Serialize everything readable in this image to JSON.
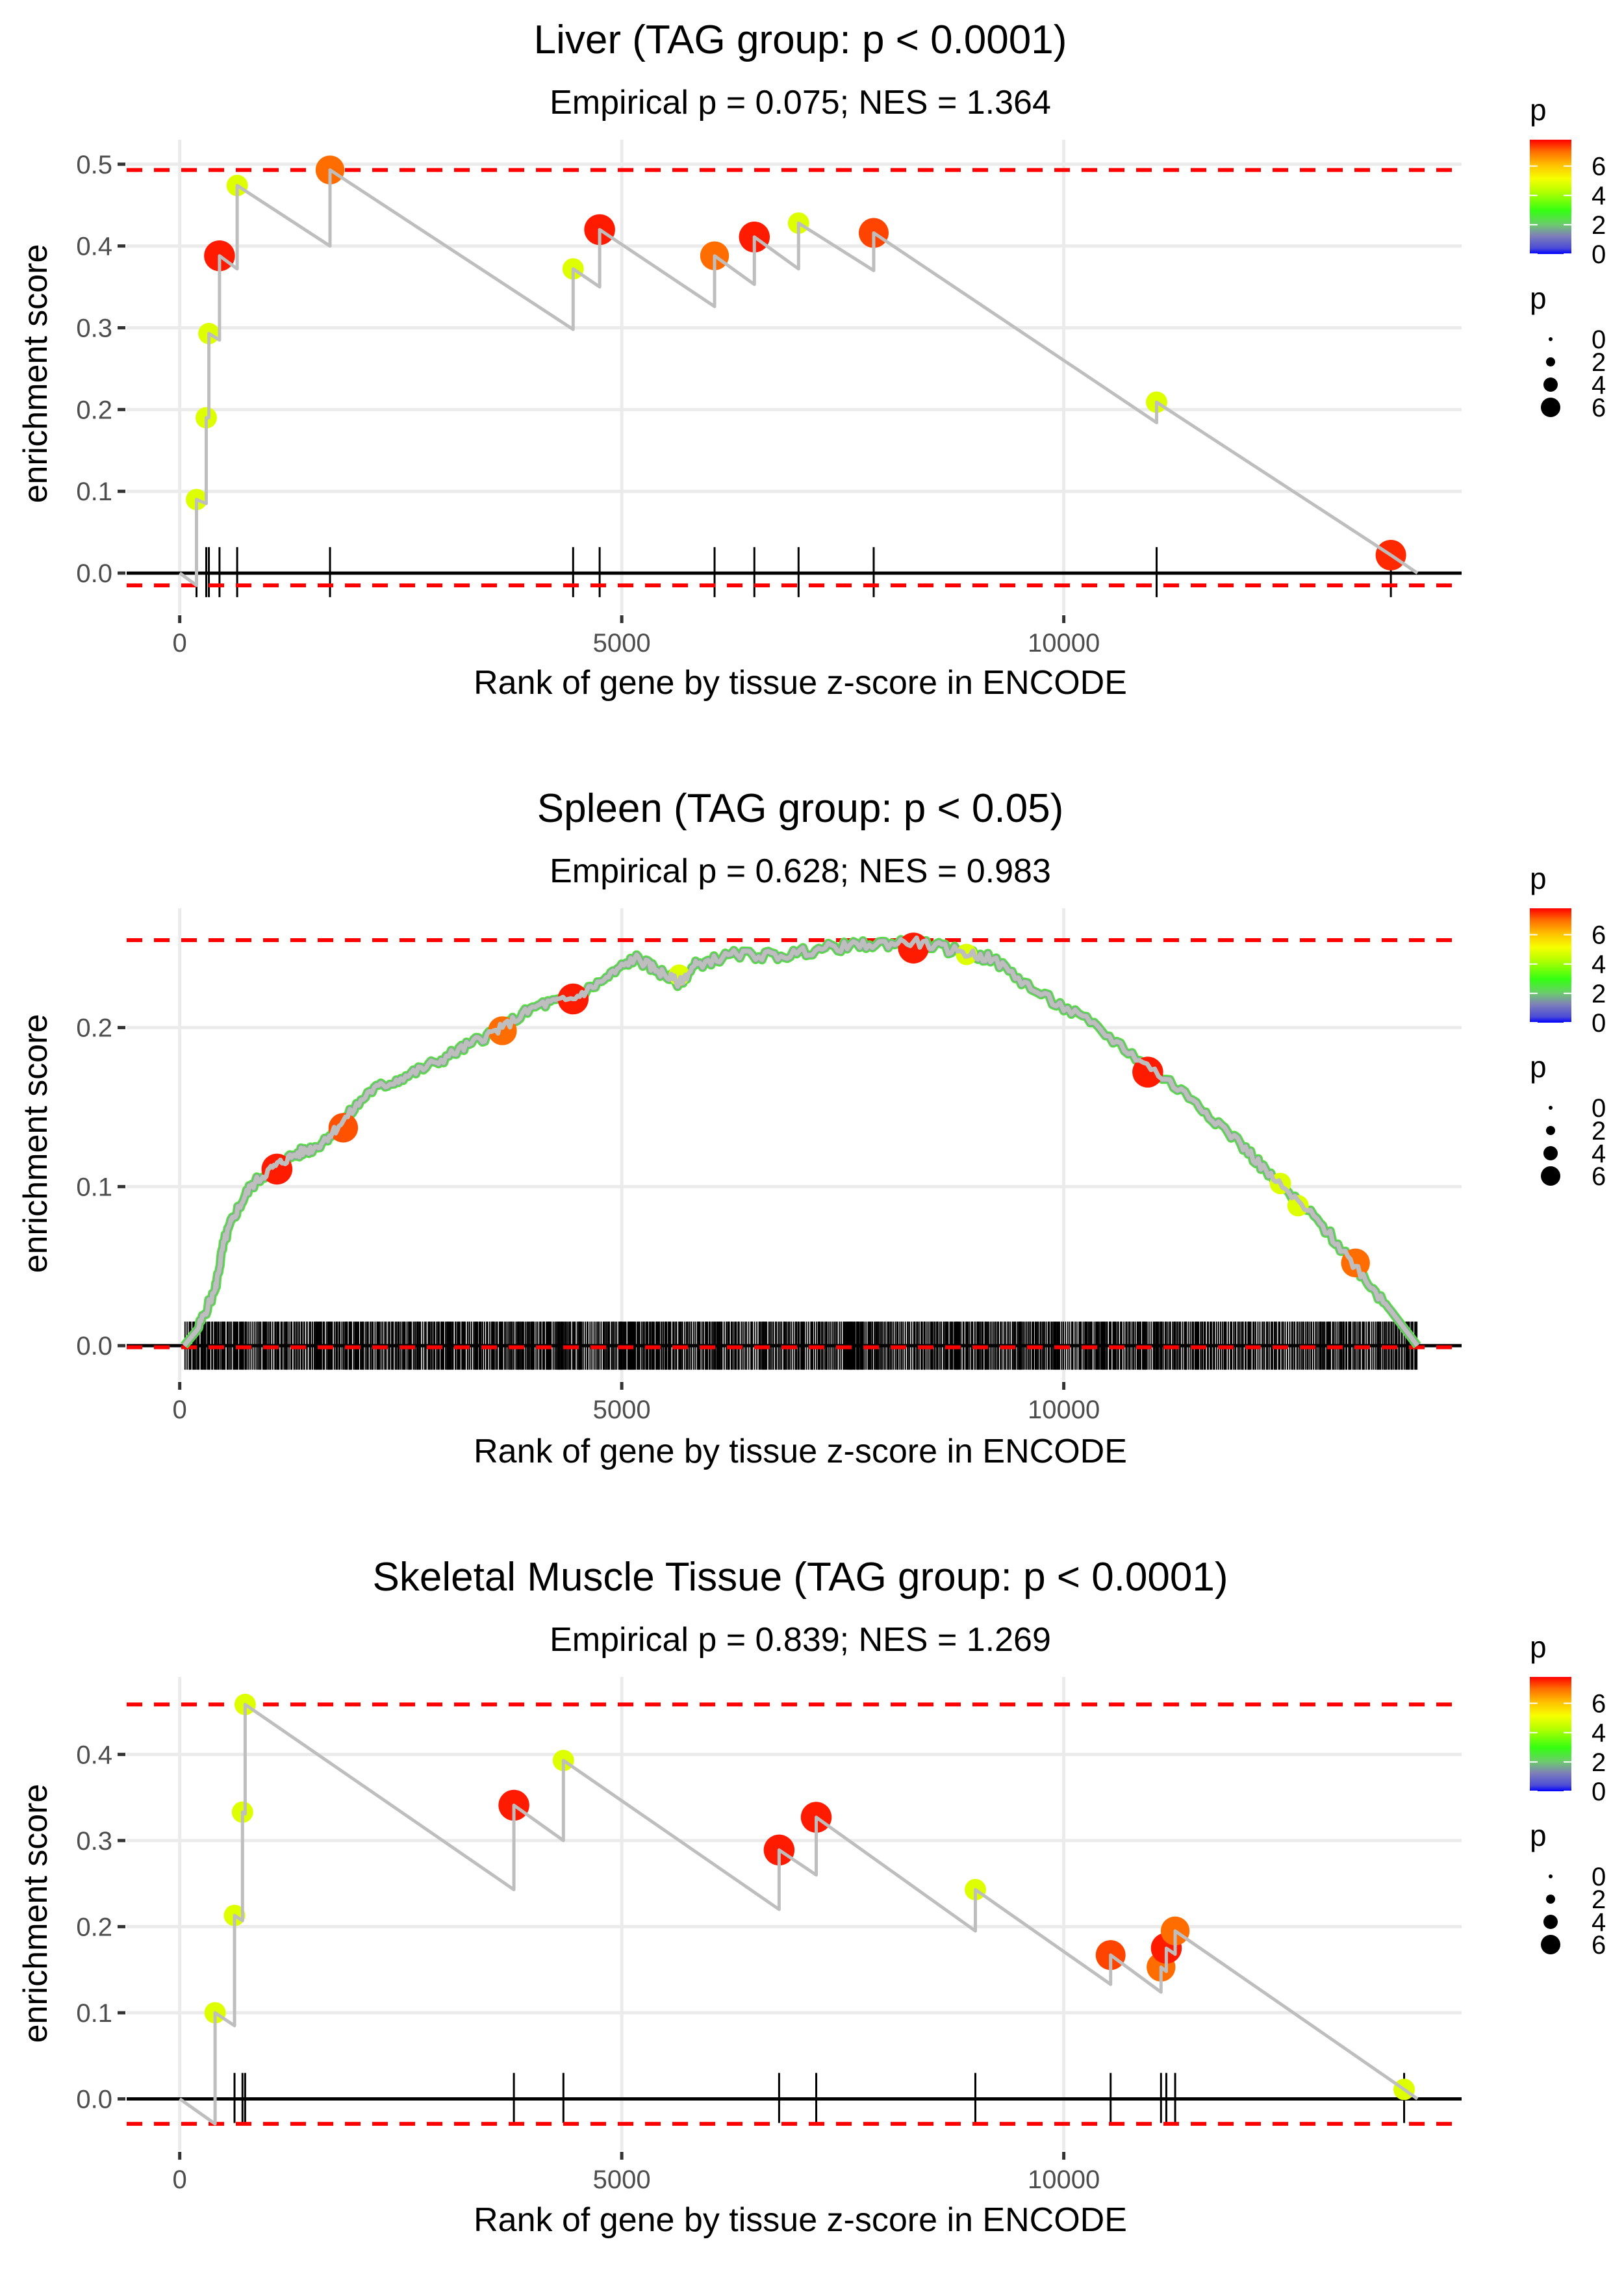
{
  "chart_data": [
    {
      "type": "line",
      "title": "Liver (TAG group: p < 0.0001)",
      "subtitle": "Empirical p = 0.075; NES = 1.364",
      "xlabel": "Rank of gene by tissue z-score in ENCODE",
      "ylabel": "enrichment score",
      "xlim": [
        -600,
        14500
      ],
      "ylim": [
        -0.05,
        0.53
      ],
      "x_ticks": [
        0,
        5000,
        10000
      ],
      "x_tick_labels": [
        "0",
        "5000",
        "10000"
      ],
      "y_ticks": [
        0.0,
        0.1,
        0.2,
        0.3,
        0.4,
        0.5
      ],
      "y_tick_labels": [
        "0.0",
        "0.1",
        "0.2",
        "0.3",
        "0.4",
        "0.5"
      ],
      "grid": true,
      "max_line": 0.493,
      "min_line": -0.015,
      "curve": [
        [
          0,
          0
        ],
        [
          190,
          -0.015
        ],
        [
          190,
          0.09
        ],
        [
          300,
          0.085
        ],
        [
          300,
          0.19
        ],
        [
          330,
          0.19
        ],
        [
          330,
          0.293
        ],
        [
          450,
          0.285
        ],
        [
          450,
          0.388
        ],
        [
          650,
          0.372
        ],
        [
          650,
          0.474
        ],
        [
          1700,
          0.4
        ],
        [
          1700,
          0.493
        ],
        [
          4450,
          0.298
        ],
        [
          4450,
          0.372
        ],
        [
          4750,
          0.35
        ],
        [
          4750,
          0.42
        ],
        [
          6050,
          0.326
        ],
        [
          6050,
          0.388
        ],
        [
          6500,
          0.353
        ],
        [
          6500,
          0.411
        ],
        [
          7000,
          0.372
        ],
        [
          7000,
          0.428
        ],
        [
          7850,
          0.37
        ],
        [
          7850,
          0.416
        ],
        [
          11050,
          0.184
        ],
        [
          11050,
          0.209
        ],
        [
          13700,
          0.022
        ],
        [
          14000,
          0
        ]
      ],
      "hits": [
        {
          "rank": 190,
          "es": 0.09,
          "p": 4.8
        },
        {
          "rank": 300,
          "es": 0.19,
          "p": 4.8
        },
        {
          "rank": 330,
          "es": 0.293,
          "p": 4.8
        },
        {
          "rank": 450,
          "es": 0.388,
          "p": 7.6
        },
        {
          "rank": 650,
          "es": 0.474,
          "p": 4.8
        },
        {
          "rank": 1700,
          "es": 0.493,
          "p": 7.0
        },
        {
          "rank": 4450,
          "es": 0.372,
          "p": 4.8
        },
        {
          "rank": 4750,
          "es": 0.42,
          "p": 7.6
        },
        {
          "rank": 6050,
          "es": 0.388,
          "p": 7.0
        },
        {
          "rank": 6500,
          "es": 0.411,
          "p": 7.6
        },
        {
          "rank": 7000,
          "es": 0.428,
          "p": 4.8
        },
        {
          "rank": 7850,
          "es": 0.416,
          "p": 7.3
        },
        {
          "rank": 11050,
          "es": 0.209,
          "p": 4.8
        },
        {
          "rank": 13700,
          "es": 0.022,
          "p": 7.5
        }
      ]
    },
    {
      "type": "line",
      "title": "Spleen (TAG group: p < 0.05)",
      "subtitle": "Empirical p = 0.628; NES = 0.983",
      "xlabel": "Rank of gene by tissue z-score in ENCODE",
      "ylabel": "enrichment score",
      "xlim": [
        -600,
        14500
      ],
      "ylim": [
        -0.022,
        0.275
      ],
      "x_ticks": [
        0,
        5000,
        10000
      ],
      "x_tick_labels": [
        "0",
        "5000",
        "10000"
      ],
      "y_ticks": [
        0.0,
        0.1,
        0.2
      ],
      "y_tick_labels": [
        "0.0",
        "0.1",
        "0.2"
      ],
      "grid": true,
      "max_line": 0.255,
      "min_line": -0.001,
      "n_hits_rug": "dense (≈1,000+ genes)",
      "curve": [
        [
          50,
          0
        ],
        [
          200,
          0.01
        ],
        [
          400,
          0.035
        ],
        [
          500,
          0.065
        ],
        [
          600,
          0.08
        ],
        [
          800,
          0.1
        ],
        [
          1050,
          0.112
        ],
        [
          1300,
          0.12
        ],
        [
          1550,
          0.125
        ],
        [
          1800,
          0.138
        ],
        [
          2150,
          0.16
        ],
        [
          2500,
          0.168
        ],
        [
          2900,
          0.178
        ],
        [
          3300,
          0.19
        ],
        [
          3650,
          0.2
        ],
        [
          4050,
          0.214
        ],
        [
          4450,
          0.218
        ],
        [
          4800,
          0.23
        ],
        [
          5150,
          0.244
        ],
        [
          5400,
          0.236
        ],
        [
          5650,
          0.228
        ],
        [
          5850,
          0.24
        ],
        [
          6300,
          0.246
        ],
        [
          6800,
          0.245
        ],
        [
          7300,
          0.25
        ],
        [
          7800,
          0.252
        ],
        [
          8300,
          0.254
        ],
        [
          8800,
          0.248
        ],
        [
          9200,
          0.243
        ],
        [
          9700,
          0.222
        ],
        [
          10300,
          0.203
        ],
        [
          10900,
          0.178
        ],
        [
          11500,
          0.153
        ],
        [
          12000,
          0.127
        ],
        [
          12400,
          0.103
        ],
        [
          12900,
          0.077
        ],
        [
          13300,
          0.05
        ],
        [
          13700,
          0.022
        ],
        [
          14000,
          0.0
        ]
      ],
      "hits": [
        {
          "rank": 1100,
          "es": 0.111,
          "p": 7.6
        },
        {
          "rank": 1850,
          "es": 0.137,
          "p": 7.2
        },
        {
          "rank": 3650,
          "es": 0.198,
          "p": 7.0
        },
        {
          "rank": 4450,
          "es": 0.218,
          "p": 7.6
        },
        {
          "rank": 5650,
          "es": 0.233,
          "p": 4.8
        },
        {
          "rank": 8300,
          "es": 0.25,
          "p": 7.6
        },
        {
          "rank": 8900,
          "es": 0.246,
          "p": 4.8
        },
        {
          "rank": 10950,
          "es": 0.172,
          "p": 7.6
        },
        {
          "rank": 12450,
          "es": 0.102,
          "p": 4.8
        },
        {
          "rank": 12650,
          "es": 0.088,
          "p": 4.8
        },
        {
          "rank": 13300,
          "es": 0.052,
          "p": 7.0
        }
      ]
    },
    {
      "type": "line",
      "title": "Skeletal Muscle Tissue (TAG group: p < 0.0001)",
      "subtitle": "Empirical p = 0.839; NES = 1.269",
      "xlabel": "Rank of gene by tissue z-score in ENCODE",
      "ylabel": "enrichment score",
      "xlim": [
        -600,
        14500
      ],
      "ylim": [
        -0.06,
        0.49
      ],
      "x_ticks": [
        0,
        5000,
        10000
      ],
      "x_tick_labels": [
        "0",
        "5000",
        "10000"
      ],
      "y_ticks": [
        0.0,
        0.1,
        0.2,
        0.3,
        0.4
      ],
      "y_tick_labels": [
        "0.0",
        "0.1",
        "0.2",
        "0.3",
        "0.4"
      ],
      "grid": true,
      "max_line": 0.458,
      "min_line": -0.029,
      "curve": [
        [
          0,
          0
        ],
        [
          400,
          -0.029
        ],
        [
          400,
          0.1
        ],
        [
          620,
          0.085
        ],
        [
          620,
          0.213
        ],
        [
          710,
          0.207
        ],
        [
          710,
          0.333
        ],
        [
          740,
          0.331
        ],
        [
          740,
          0.458
        ],
        [
          3780,
          0.243
        ],
        [
          3780,
          0.341
        ],
        [
          4340,
          0.3
        ],
        [
          4340,
          0.393
        ],
        [
          6780,
          0.22
        ],
        [
          6780,
          0.289
        ],
        [
          7200,
          0.26
        ],
        [
          7200,
          0.327
        ],
        [
          9000,
          0.195
        ],
        [
          9000,
          0.243
        ],
        [
          10530,
          0.133
        ],
        [
          10530,
          0.167
        ],
        [
          11100,
          0.124
        ],
        [
          11100,
          0.153
        ],
        [
          11160,
          0.148
        ],
        [
          11160,
          0.175
        ],
        [
          11260,
          0.168
        ],
        [
          11260,
          0.195
        ],
        [
          13850,
          0.011
        ],
        [
          14000,
          0
        ]
      ],
      "hits": [
        {
          "rank": 400,
          "es": 0.1,
          "p": 4.8
        },
        {
          "rank": 620,
          "es": 0.213,
          "p": 4.8
        },
        {
          "rank": 710,
          "es": 0.333,
          "p": 4.8
        },
        {
          "rank": 740,
          "es": 0.458,
          "p": 4.8
        },
        {
          "rank": 3780,
          "es": 0.341,
          "p": 7.6
        },
        {
          "rank": 4340,
          "es": 0.393,
          "p": 4.8
        },
        {
          "rank": 6780,
          "es": 0.289,
          "p": 7.6
        },
        {
          "rank": 7200,
          "es": 0.327,
          "p": 7.6
        },
        {
          "rank": 9000,
          "es": 0.243,
          "p": 4.8
        },
        {
          "rank": 10530,
          "es": 0.167,
          "p": 7.3
        },
        {
          "rank": 11100,
          "es": 0.153,
          "p": 7.0
        },
        {
          "rank": 11160,
          "es": 0.175,
          "p": 7.6
        },
        {
          "rank": 11260,
          "es": 0.195,
          "p": 7.0
        },
        {
          "rank": 13850,
          "es": 0.011,
          "p": 4.8
        }
      ]
    }
  ],
  "legend": {
    "color_title": "p",
    "color_ticks": [
      "0",
      "2",
      "4",
      "6"
    ],
    "color_range": [
      0,
      7.8
    ],
    "size_title": "p",
    "size_ticks": [
      "0",
      "2",
      "4",
      "6"
    ],
    "colors": {
      "gradient": [
        "#0000ff",
        "#7f7fc0",
        "#6fcf6f",
        "#33ff00",
        "#ccff00",
        "#ffff00",
        "#ffa500",
        "#ff0000"
      ],
      "curve": "#bebebe",
      "threshold": "#ff0000",
      "rug": "#000000",
      "grid": "#ebebeb"
    }
  }
}
